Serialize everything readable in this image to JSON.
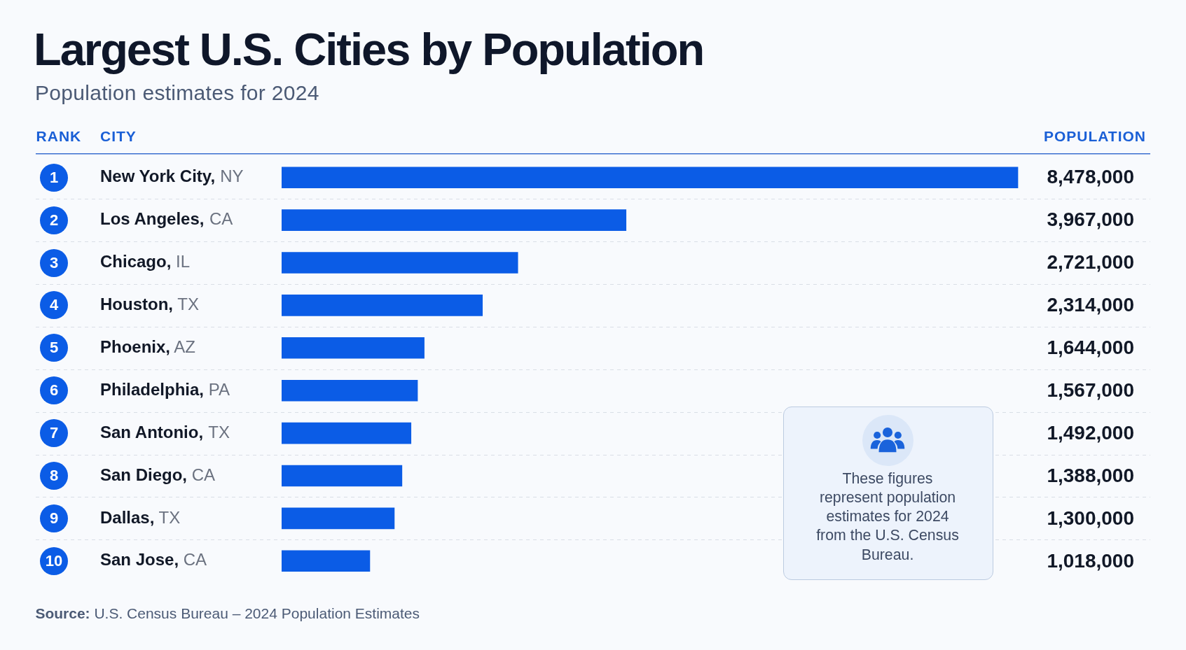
{
  "chart_data": {
    "type": "bar",
    "orientation": "horizontal",
    "title": "Largest U.S. Cities by Population",
    "subtitle": "Population estimates for 2024",
    "ylabel": "CITY",
    "xlabel": "POPULATION",
    "categories": [
      "New York City, NY",
      "Los Angeles, CA",
      "Chicago, IL",
      "Houston, TX",
      "Phoenix, AZ",
      "Philadelphia, PA",
      "San Antonio, TX",
      "San Diego, CA",
      "Dallas, TX",
      "San Jose, CA"
    ],
    "values": [
      8478000,
      3967000,
      2721000,
      2314000,
      1644000,
      1567000,
      1492000,
      1388000,
      1300000,
      1018000
    ],
    "value_labels": [
      "8,478,000",
      "3,967,000",
      "2,721,000",
      "2,314,000",
      "1,644,000",
      "1,567,000",
      "1,492,000",
      "1,388,000",
      "1,300,000",
      "1,018,000"
    ],
    "color": "#0b5ce6",
    "grid": "y",
    "annotations": [
      "RANK",
      "1",
      "2",
      "3",
      "4",
      "5",
      "6",
      "7",
      "8",
      "9",
      "10",
      "These figures represent population estimates for 2024 from the U.S. Census Bureau.",
      "Source: U.S. Census Bureau – 2024 Population Estimates"
    ]
  }
}
